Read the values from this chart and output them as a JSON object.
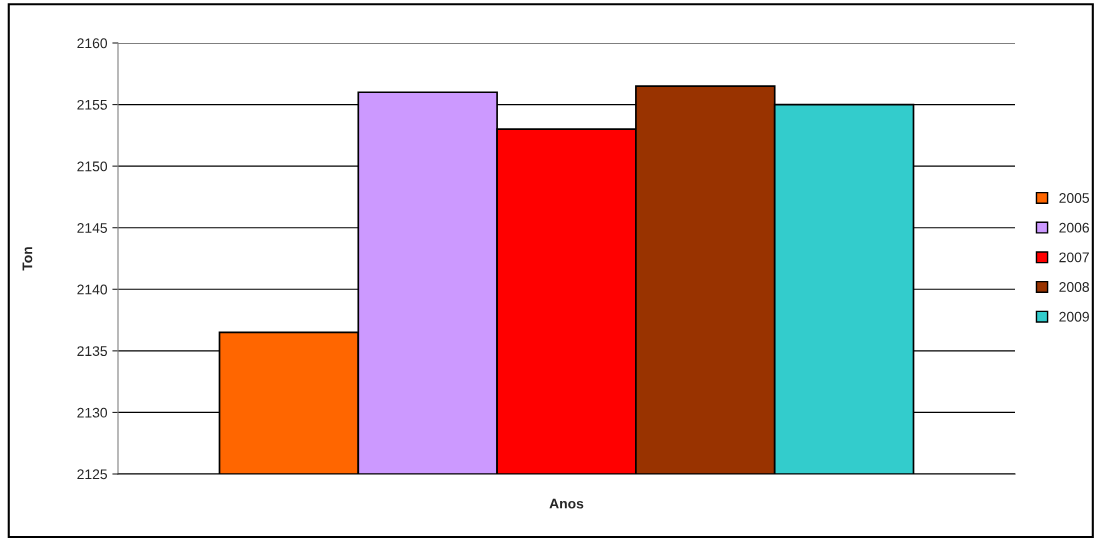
{
  "chart_data": {
    "type": "bar",
    "xlabel": "Anos",
    "ylabel": "Ton",
    "categories": [
      null
    ],
    "series": [
      {
        "name": "2005",
        "color": "#ff6600",
        "values": [
          2136.5
        ]
      },
      {
        "name": "2006",
        "color": "#cc99ff",
        "values": [
          2156
        ]
      },
      {
        "name": "2007",
        "color": "#ff0000",
        "values": [
          2153
        ]
      },
      {
        "name": "2008",
        "color": "#993300",
        "values": [
          2156.5
        ]
      },
      {
        "name": "2009",
        "color": "#33cccc",
        "values": [
          2155
        ]
      }
    ],
    "ylim": [
      2125,
      2160
    ],
    "yticks": [
      2125,
      2130,
      2135,
      2140,
      2145,
      2150,
      2155,
      2160
    ],
    "grid": "y",
    "legend": "right"
  }
}
